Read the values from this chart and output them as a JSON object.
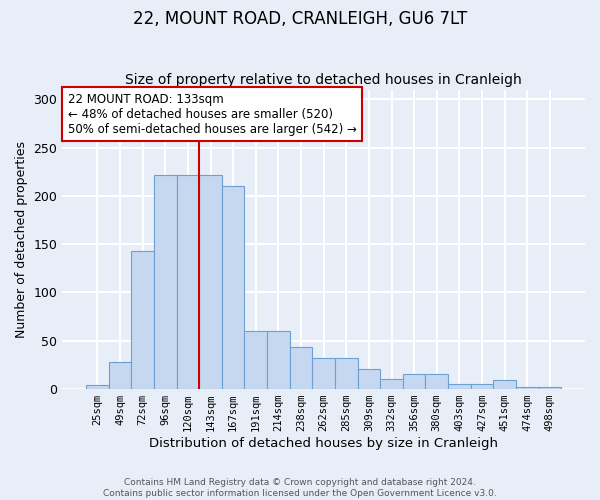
{
  "title1": "22, MOUNT ROAD, CRANLEIGH, GU6 7LT",
  "title2": "Size of property relative to detached houses in Cranleigh",
  "xlabel": "Distribution of detached houses by size in Cranleigh",
  "ylabel": "Number of detached properties",
  "categories": [
    "25sqm",
    "49sqm",
    "72sqm",
    "96sqm",
    "120sqm",
    "143sqm",
    "167sqm",
    "191sqm",
    "214sqm",
    "238sqm",
    "262sqm",
    "285sqm",
    "309sqm",
    "332sqm",
    "356sqm",
    "380sqm",
    "403sqm",
    "427sqm",
    "451sqm",
    "474sqm",
    "498sqm"
  ],
  "values": [
    4,
    28,
    143,
    222,
    222,
    222,
    210,
    60,
    60,
    44,
    32,
    32,
    21,
    10,
    16,
    16,
    5,
    5,
    9,
    2,
    2
  ],
  "bar_color": "#c5d8f0",
  "bar_edge_color": "#6aa0d4",
  "bar_width": 1.0,
  "ylim": [
    0,
    310
  ],
  "yticks": [
    0,
    50,
    100,
    150,
    200,
    250,
    300
  ],
  "vline_x": 4.5,
  "vline_color": "#cc0000",
  "annotation_text": "22 MOUNT ROAD: 133sqm\n← 48% of detached houses are smaller (520)\n50% of semi-detached houses are larger (542) →",
  "annotation_box_color": "#ffffff",
  "annotation_box_edge_color": "#cc0000",
  "footer_text": "Contains HM Land Registry data © Crown copyright and database right 2024.\nContains public sector information licensed under the Open Government Licence v3.0.",
  "background_color": "#e8eef8",
  "grid_color": "#ffffff",
  "title1_fontsize": 12,
  "title2_fontsize": 10
}
